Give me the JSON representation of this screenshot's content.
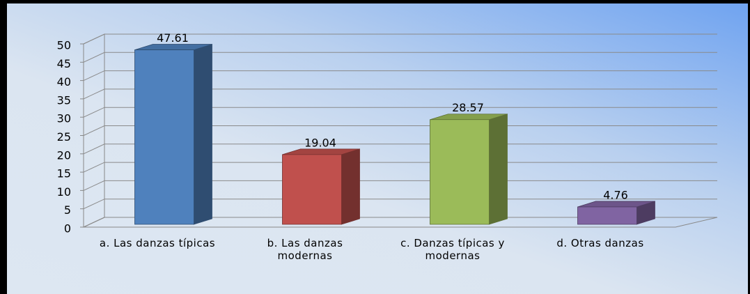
{
  "chart_data": {
    "type": "bar3d",
    "categories": [
      "a. Las danzas típicas",
      "b. Las danzas modernas",
      "c. Danzas típicas y modernas",
      "d. Otras danzas"
    ],
    "values": [
      47.61,
      19.04,
      28.57,
      4.76
    ],
    "colors": [
      "#4f81bd",
      "#c0504d",
      "#9bbb59",
      "#8064a2"
    ],
    "ylim": [
      0,
      50
    ],
    "yticks": [
      0,
      5,
      10,
      15,
      20,
      25,
      30,
      35,
      40,
      45,
      50
    ],
    "grid": true
  }
}
